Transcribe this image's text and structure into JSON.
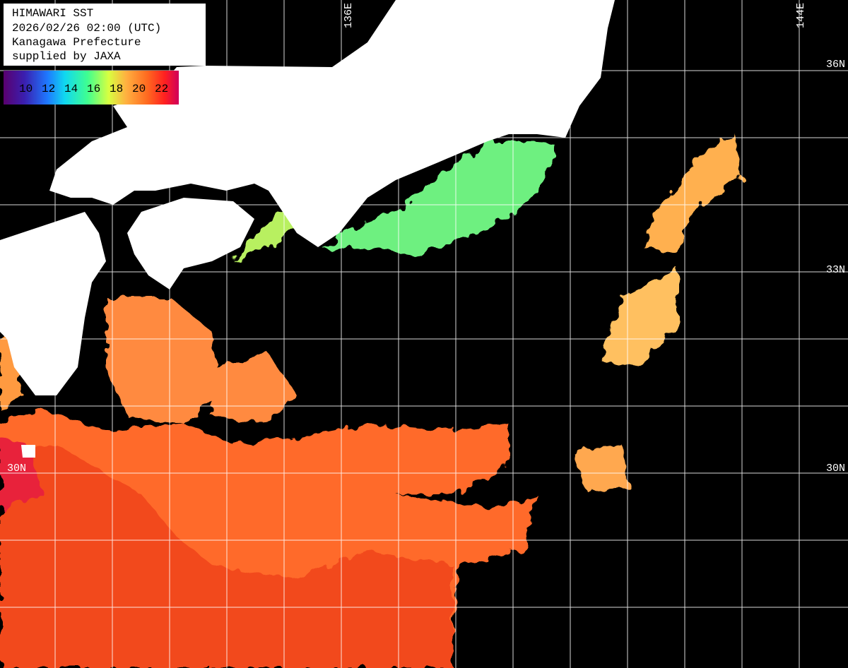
{
  "header": {
    "lines": [
      "HIMAWARI SST",
      "2026/02/26 02:00 (UTC)",
      "Kanagawa Prefecture",
      "supplied by JAXA"
    ]
  },
  "colorbar": {
    "labels": [
      "10",
      "12",
      "14",
      "16",
      "18",
      "20",
      "22"
    ]
  },
  "grid_labels": {
    "longitude": [
      "136E",
      "144E"
    ],
    "latitude_right": [
      "36N",
      "33N",
      "30N"
    ],
    "latitude_left": [
      "30N"
    ]
  }
}
